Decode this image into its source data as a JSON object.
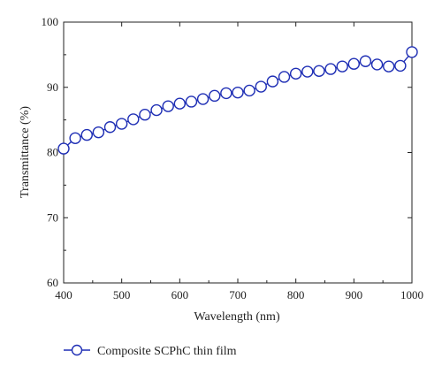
{
  "chart_data": {
    "type": "line",
    "title": "",
    "xlabel": "Wavelength (nm)",
    "ylabel": "Transmittance (%)",
    "xlim": [
      400,
      1000
    ],
    "ylim": [
      60,
      100
    ],
    "xticks": [
      400,
      500,
      600,
      700,
      800,
      900,
      1000
    ],
    "yticks": [
      60,
      70,
      80,
      90,
      100
    ],
    "grid": false,
    "legend_position": "bottom-left",
    "series": [
      {
        "name": "Composite SCPhC thin film",
        "color": "#1f2fb5",
        "marker": "open-circle",
        "x": [
          400,
          420,
          440,
          460,
          480,
          500,
          520,
          540,
          560,
          580,
          600,
          620,
          640,
          660,
          680,
          700,
          720,
          740,
          760,
          780,
          800,
          820,
          840,
          860,
          880,
          900,
          920,
          940,
          960,
          980,
          1000
        ],
        "y": [
          80.6,
          82.2,
          82.7,
          83.1,
          83.9,
          84.4,
          85.1,
          85.8,
          86.5,
          87.1,
          87.5,
          87.8,
          88.2,
          88.7,
          89.1,
          89.2,
          89.5,
          90.1,
          90.9,
          91.6,
          92.1,
          92.4,
          92.5,
          92.8,
          93.2,
          93.6,
          94.0,
          93.5,
          93.2,
          93.3,
          95.4
        ]
      }
    ]
  }
}
